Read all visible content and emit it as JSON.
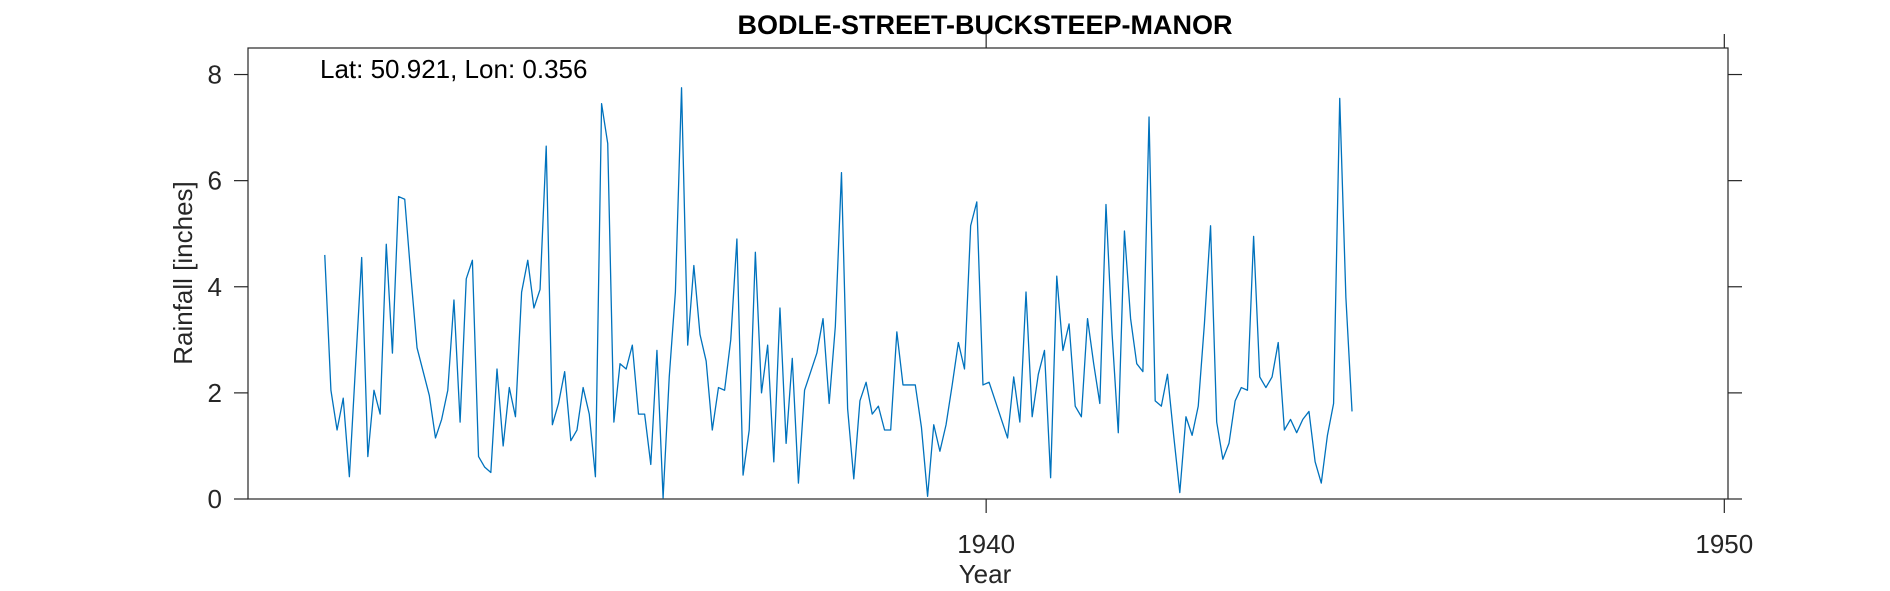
{
  "chart_data": {
    "type": "line",
    "title": "BODLE-STREET-BUCKSTEEP-MANOR",
    "annotation": "Lat: 50.921, Lon: 0.356",
    "xlabel": "Year",
    "ylabel": "Rainfall [inches]",
    "xlim": [
      1930,
      1950.05
    ],
    "ylim": [
      0,
      8.5
    ],
    "xticks": [
      1940,
      1950
    ],
    "yticks": [
      0,
      2,
      4,
      6,
      8
    ],
    "grid": false,
    "series": [
      {
        "color": "#0072BD",
        "x_start": 1931.04,
        "x_step": 0.0833333,
        "values": [
          4.6,
          2.05,
          1.3,
          1.9,
          0.42,
          2.5,
          4.55,
          0.8,
          2.05,
          1.6,
          4.8,
          2.75,
          5.7,
          5.65,
          4.2,
          2.85,
          2.4,
          1.95,
          1.15,
          1.5,
          2.05,
          3.75,
          1.45,
          4.15,
          4.5,
          0.8,
          0.6,
          0.5,
          2.45,
          1.0,
          2.1,
          1.55,
          3.9,
          4.5,
          3.6,
          3.95,
          6.65,
          1.4,
          1.8,
          2.4,
          1.1,
          1.3,
          2.1,
          1.6,
          0.42,
          7.45,
          6.7,
          1.45,
          2.55,
          2.45,
          2.9,
          1.6,
          1.6,
          0.65,
          2.8,
          0.02,
          2.3,
          3.9,
          7.75,
          2.9,
          4.4,
          3.1,
          2.6,
          1.3,
          2.1,
          2.05,
          3.0,
          4.9,
          0.45,
          1.3,
          4.65,
          2.0,
          2.9,
          0.7,
          3.6,
          1.05,
          2.65,
          0.3,
          2.05,
          2.4,
          2.75,
          3.4,
          1.8,
          3.25,
          6.15,
          1.7,
          0.38,
          1.85,
          2.2,
          1.6,
          1.75,
          1.3,
          1.3,
          3.15,
          2.15,
          2.15,
          2.15,
          1.35,
          0.05,
          1.4,
          0.9,
          1.4,
          2.15,
          2.95,
          2.45,
          5.15,
          5.6,
          2.15,
          2.2,
          1.85,
          1.5,
          1.15,
          2.3,
          1.45,
          3.9,
          1.55,
          2.35,
          2.8,
          0.4,
          4.2,
          2.8,
          3.3,
          1.75,
          1.55,
          3.4,
          2.55,
          1.8,
          5.55,
          3.1,
          1.25,
          5.05,
          3.4,
          2.55,
          2.4,
          7.2,
          1.85,
          1.75,
          2.35,
          1.2,
          0.12,
          1.55,
          1.2,
          1.75,
          3.3,
          5.15,
          1.45,
          0.75,
          1.05,
          1.85,
          2.1,
          2.05,
          4.95,
          2.3,
          2.1,
          2.3,
          2.95,
          1.3,
          1.5,
          1.25,
          1.5,
          1.65,
          0.7,
          0.3,
          1.2,
          1.8,
          7.55,
          3.8,
          1.65
        ]
      }
    ]
  }
}
